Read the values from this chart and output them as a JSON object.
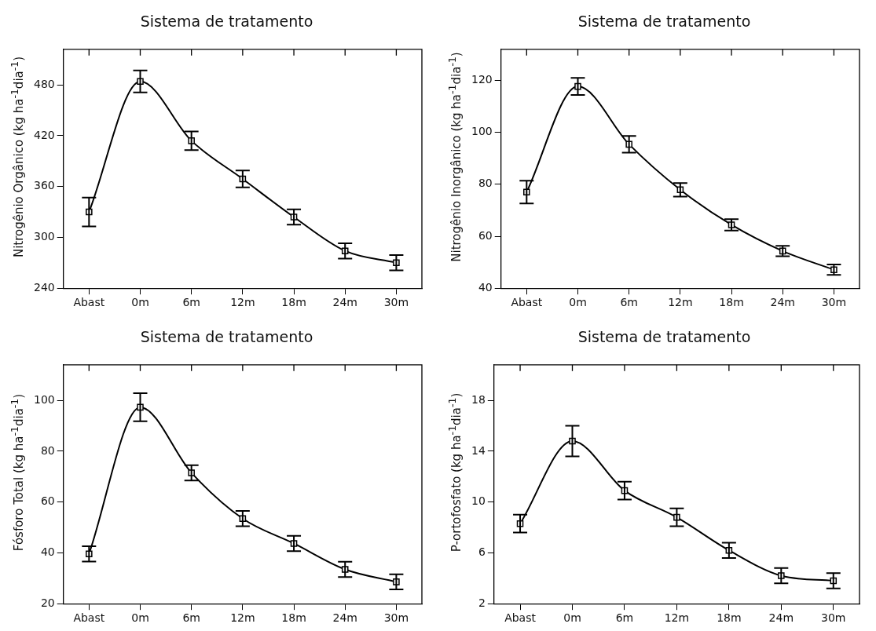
{
  "chart_data": [
    {
      "type": "line",
      "title": "Sistema de tratamento",
      "ylabel": "Nitrogênio Orgânico (kg ha$^{-1}$dia$^{-1}$)",
      "categories": [
        "Abast",
        "0m",
        "6m",
        "12m",
        "18m",
        "24m",
        "30m"
      ],
      "series": [
        {
          "color": "#000000",
          "values": [
            330,
            484,
            414,
            369,
            324,
            284,
            270
          ],
          "errors": [
            17,
            13,
            11,
            10,
            9,
            9,
            9
          ]
        }
      ],
      "ylim": [
        240,
        522
      ],
      "yticks": [
        240,
        300,
        360,
        420,
        480
      ],
      "marker": "square",
      "grid": false,
      "legend": false
    },
    {
      "type": "line",
      "title": "Sistema de tratamento",
      "ylabel": "Nitrogênio Inorgânico (kg ha$^{-1}$dia$^{-1}$)",
      "categories": [
        "Abast",
        "0m",
        "6m",
        "12m",
        "18m",
        "24m",
        "30m"
      ],
      "series": [
        {
          "color": "#000000",
          "values": [
            77,
            117.7,
            95.4,
            77.9,
            64.4,
            54.3,
            47.1
          ],
          "errors": [
            4.4,
            3.3,
            3.2,
            2.6,
            2.2,
            2,
            2
          ]
        }
      ],
      "ylim": [
        40,
        132
      ],
      "yticks": [
        40,
        60,
        80,
        100,
        120
      ],
      "marker": "square",
      "grid": false,
      "legend": false
    },
    {
      "type": "line",
      "title": "Sistema de tratamento",
      "ylabel": "Fósforo Total (kg ha$^{-1}$dia$^{-1}$)",
      "categories": [
        "Abast",
        "0m",
        "6m",
        "12m",
        "18m",
        "24m",
        "30m"
      ],
      "series": [
        {
          "color": "#000000",
          "values": [
            39.6,
            97.3,
            71.5,
            53.5,
            43.7,
            33.5,
            28.6
          ],
          "errors": [
            3,
            5.5,
            3,
            3,
            3,
            3,
            3
          ]
        }
      ],
      "ylim": [
        20,
        114
      ],
      "yticks": [
        20,
        40,
        60,
        80,
        100
      ],
      "marker": "square",
      "grid": false,
      "legend": false
    },
    {
      "type": "line",
      "title": "Sistema de tratamento",
      "ylabel": "P-ortofosfato (kg ha$^{-1}$dia$^{-1}$)",
      "categories": [
        "Abast",
        "0m",
        "6m",
        "12m",
        "18m",
        "24m",
        "30m"
      ],
      "series": [
        {
          "color": "#000000",
          "values": [
            8.3,
            14.8,
            10.9,
            8.8,
            6.2,
            4.2,
            3.8
          ],
          "errors": [
            0.7,
            1.2,
            0.7,
            0.7,
            0.6,
            0.6,
            0.6
          ]
        }
      ],
      "ylim": [
        2,
        20.8
      ],
      "yticks": [
        2,
        6,
        10,
        14,
        18
      ],
      "marker": "square",
      "grid": false,
      "legend": false
    }
  ]
}
